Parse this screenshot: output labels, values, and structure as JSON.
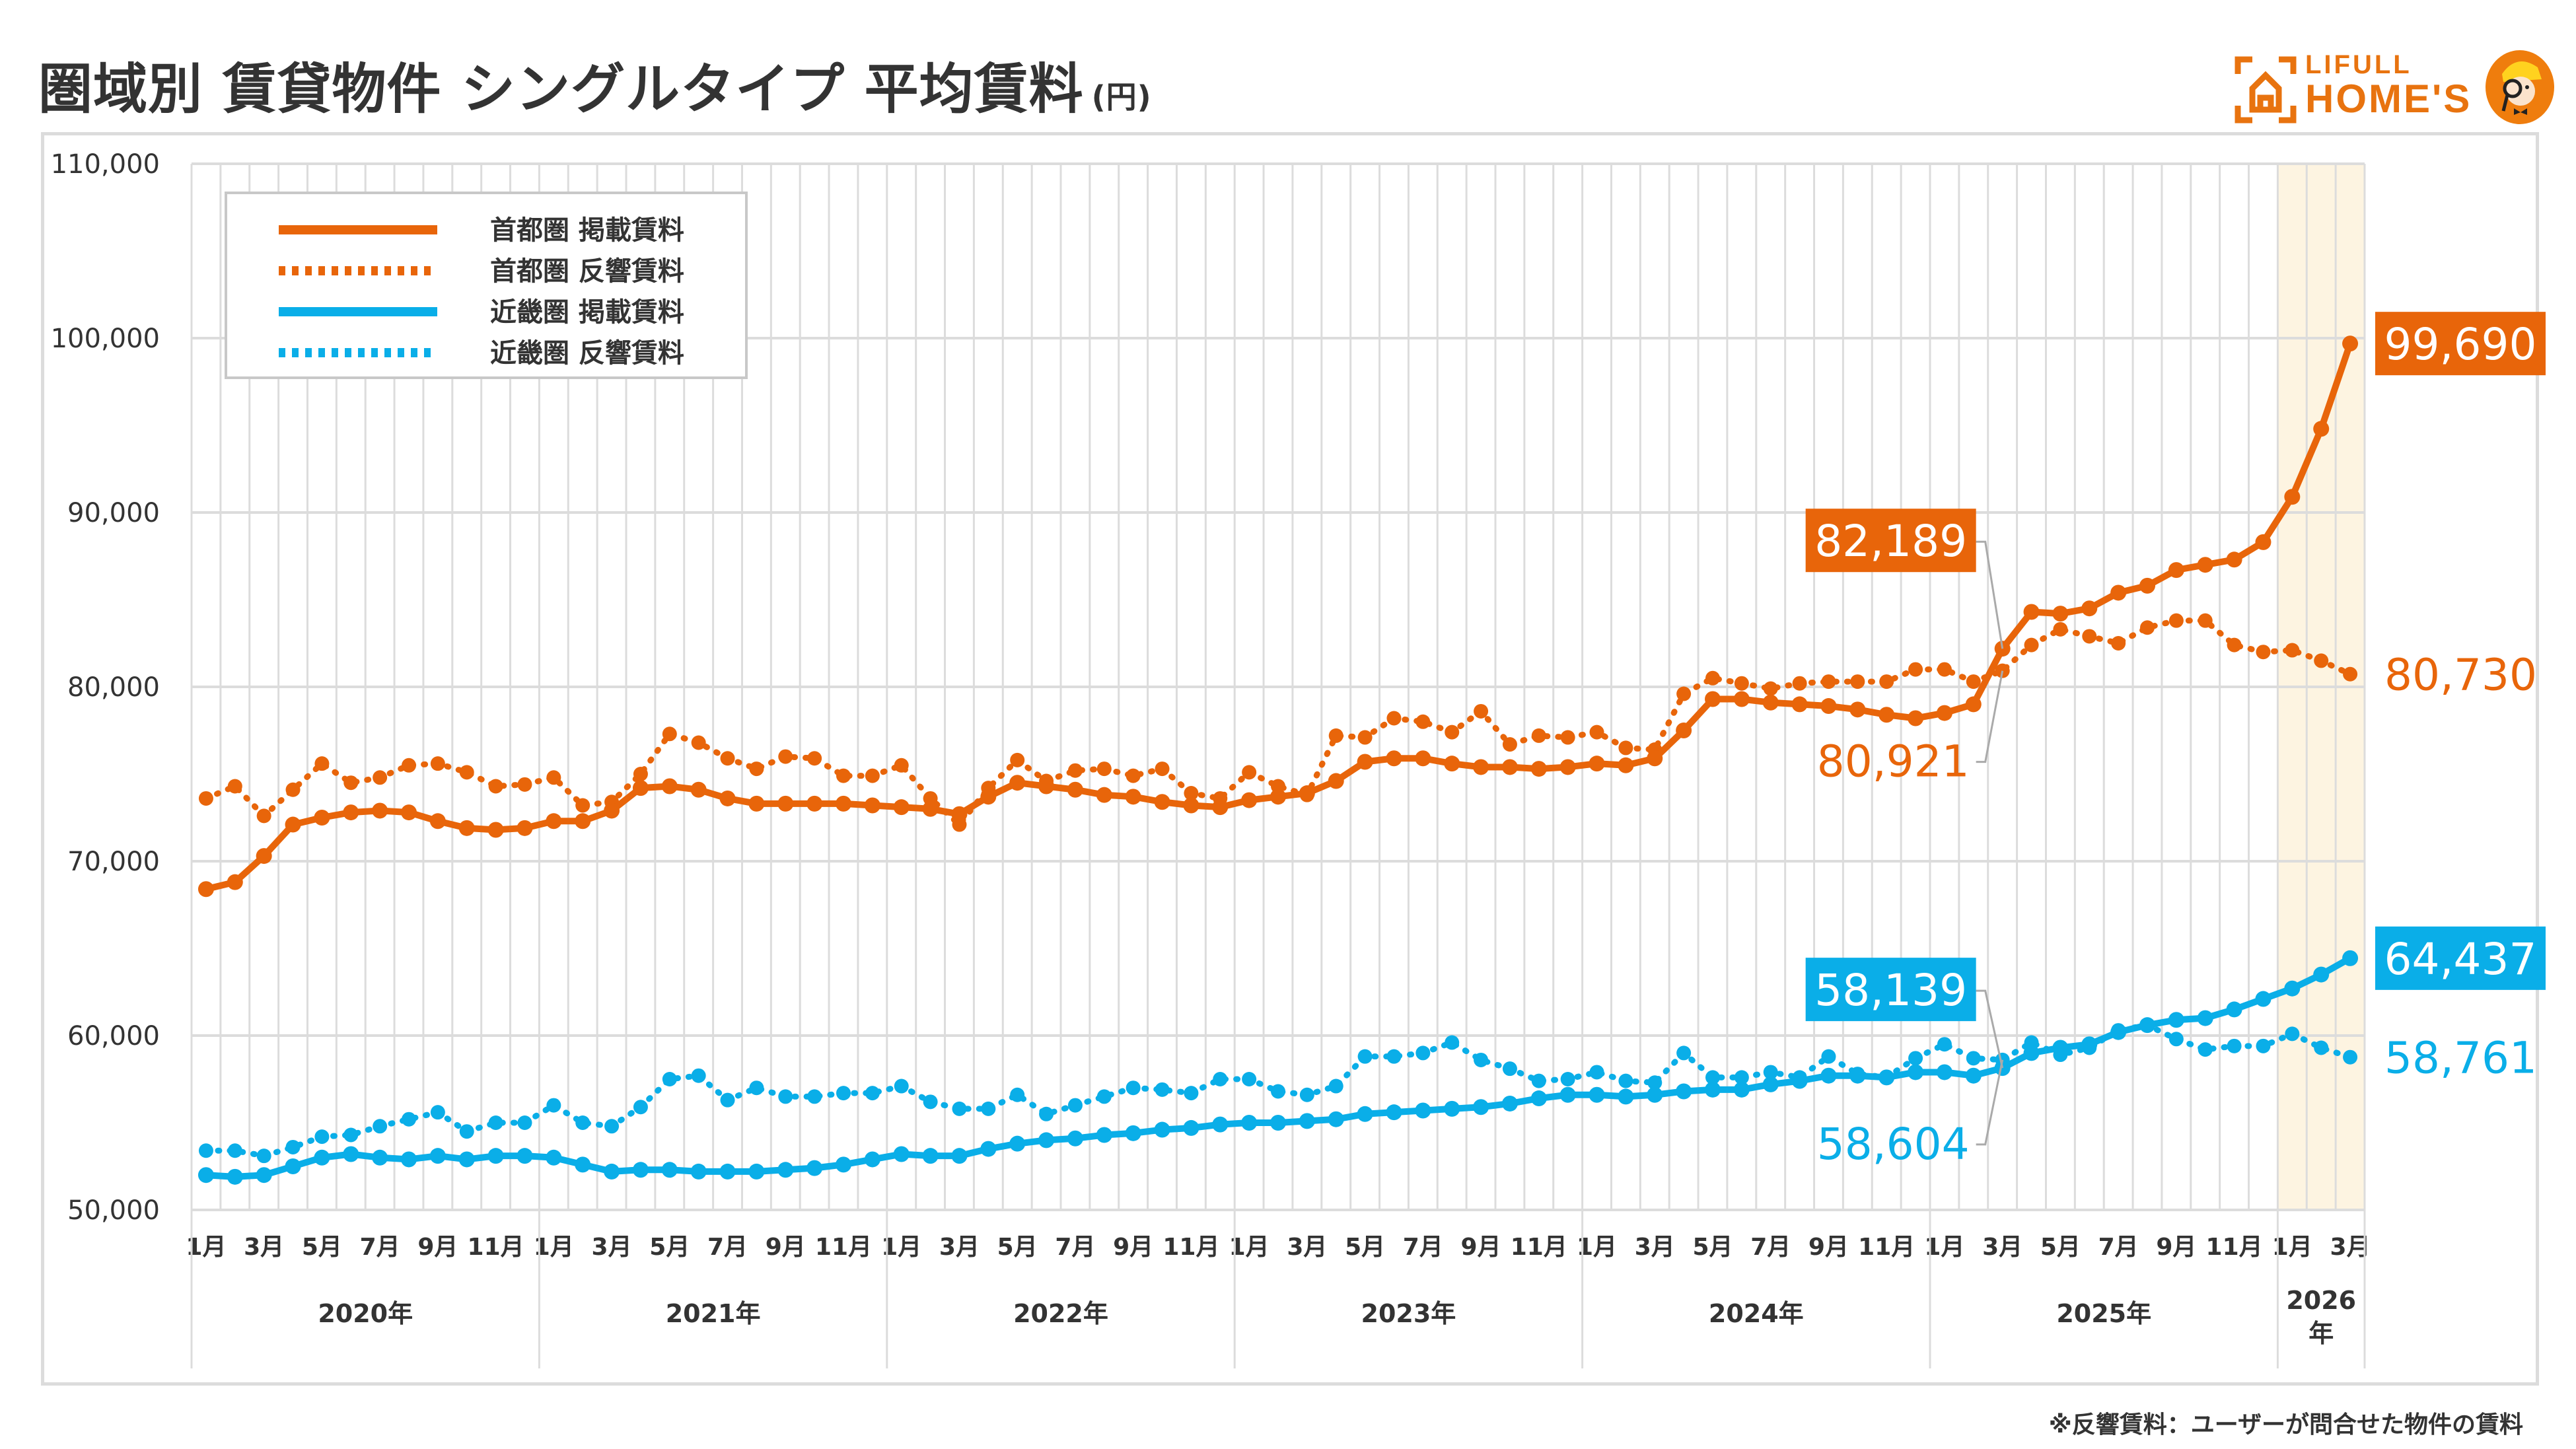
{
  "header": {
    "title": "圏域別 賃貸物件 シングルタイプ 平均賃料",
    "unit": "(円)",
    "logo": {
      "line1": "LIFULL",
      "line2": "HOME'S",
      "icon": "house-bracket-icon",
      "mascot": "detective-mascot-icon"
    }
  },
  "footnote": "※反響賃料：ユーザーが問合せた物件の賃料",
  "colors": {
    "tokyo": "#e8650a",
    "kinki": "#0aaee8",
    "highlight": "#fdf4e1",
    "grid": "#dcdcdc",
    "text": "#333333"
  },
  "chart_data": {
    "type": "line",
    "title": "圏域別 賃貸物件 シングルタイプ 平均賃料 (円)",
    "xlabel": "",
    "ylabel": "",
    "ylim": [
      50000,
      110000
    ],
    "yticks": [
      50000,
      60000,
      70000,
      80000,
      90000,
      100000,
      110000
    ],
    "ytick_labels": [
      "50,000",
      "60,000",
      "70,000",
      "80,000",
      "90,000",
      "100,000",
      "110,000"
    ],
    "grid": true,
    "legend_position": "top-left",
    "x_start": "2020-01",
    "x_end": "2026-03",
    "month_tick_labels": [
      "1月",
      "3月",
      "5月",
      "7月",
      "9月",
      "11月"
    ],
    "year_labels": [
      {
        "label": "2020年",
        "months": 12
      },
      {
        "label": "2021年",
        "months": 12
      },
      {
        "label": "2022年",
        "months": 12
      },
      {
        "label": "2023年",
        "months": 12
      },
      {
        "label": "2024年",
        "months": 12
      },
      {
        "label": "2025年",
        "months": 12
      },
      {
        "label": "2026年",
        "months": 3
      }
    ],
    "highlight_range": [
      "2026-01",
      "2026-03"
    ],
    "series": [
      {
        "name": "首都圏 掲載賃料",
        "region": "tokyo",
        "style": "solid",
        "values": [
          68400,
          68800,
          70300,
          72100,
          72500,
          72800,
          72900,
          72800,
          72300,
          71900,
          71800,
          71900,
          72300,
          72300,
          72900,
          74200,
          74300,
          74100,
          73600,
          73300,
          73300,
          73300,
          73300,
          73200,
          73100,
          73000,
          72700,
          73700,
          74500,
          74300,
          74100,
          73800,
          73700,
          73400,
          73200,
          73100,
          73500,
          73700,
          73900,
          74600,
          75700,
          75900,
          75900,
          75600,
          75400,
          75400,
          75300,
          75400,
          75600,
          75500,
          75900,
          77500,
          79300,
          79300,
          79100,
          79000,
          78900,
          78700,
          78400,
          78200,
          78500,
          79000,
          82189,
          84300,
          84200,
          84500,
          85400,
          85800,
          86700,
          87000,
          87300,
          88300,
          90900,
          94800,
          99690
        ]
      },
      {
        "name": "首都圏 反響賃料",
        "region": "tokyo",
        "style": "dotted",
        "values": [
          73600,
          74300,
          72600,
          74100,
          75600,
          74500,
          74800,
          75500,
          75600,
          75100,
          74300,
          74400,
          74800,
          73200,
          73400,
          75000,
          77300,
          76800,
          75900,
          75300,
          76000,
          75900,
          74900,
          74900,
          75500,
          73600,
          72100,
          74200,
          75800,
          74600,
          75200,
          75300,
          74900,
          75300,
          73900,
          73600,
          75100,
          74300,
          73800,
          77200,
          77100,
          78200,
          78000,
          77400,
          78600,
          76700,
          77200,
          77100,
          77400,
          76500,
          76400,
          79600,
          80500,
          80200,
          79900,
          80200,
          80300,
          80300,
          80300,
          81000,
          81000,
          80300,
          80921,
          82400,
          83300,
          82900,
          82500,
          83400,
          83800,
          83800,
          82400,
          82000,
          82100,
          81500,
          80730
        ]
      },
      {
        "name": "近畿圏 掲載賃料",
        "region": "kinki",
        "style": "solid",
        "values": [
          52000,
          51900,
          52000,
          52500,
          53000,
          53200,
          53000,
          52900,
          53100,
          52900,
          53100,
          53100,
          53000,
          52600,
          52200,
          52300,
          52300,
          52200,
          52200,
          52200,
          52300,
          52400,
          52600,
          52900,
          53200,
          53100,
          53100,
          53500,
          53800,
          54000,
          54100,
          54300,
          54400,
          54600,
          54700,
          54900,
          55000,
          55000,
          55100,
          55200,
          55500,
          55600,
          55700,
          55800,
          55900,
          56100,
          56400,
          56600,
          56600,
          56500,
          56600,
          56800,
          56900,
          56900,
          57200,
          57400,
          57700,
          57700,
          57600,
          57900,
          57900,
          57700,
          58139,
          59000,
          59300,
          59500,
          60200,
          60600,
          60900,
          61000,
          61500,
          62100,
          62700,
          63500,
          64437
        ]
      },
      {
        "name": "近畿圏 反響賃料",
        "region": "kinki",
        "style": "dotted",
        "values": [
          53400,
          53400,
          53100,
          53600,
          54200,
          54300,
          54800,
          55200,
          55600,
          54500,
          55000,
          55000,
          56000,
          55000,
          54800,
          55900,
          57500,
          57700,
          56300,
          57000,
          56500,
          56500,
          56700,
          56700,
          57100,
          56200,
          55800,
          55800,
          56600,
          55500,
          56000,
          56500,
          57000,
          56900,
          56700,
          57500,
          57500,
          56800,
          56600,
          57100,
          58800,
          58800,
          59000,
          59600,
          58600,
          58100,
          57400,
          57500,
          57900,
          57400,
          57300,
          59000,
          57600,
          57600,
          57900,
          57600,
          58800,
          57800,
          57600,
          58700,
          59500,
          58700,
          58604,
          59600,
          58900,
          59300,
          60300,
          60600,
          59800,
          59200,
          59400,
          59400,
          60100,
          59300,
          58761
        ]
      }
    ],
    "annotations": [
      {
        "text": "99,690",
        "series": "首都圏 掲載賃料",
        "month": "2026-03",
        "boxed": true
      },
      {
        "text": "80,730",
        "series": "首都圏 反響賃料",
        "month": "2026-03",
        "boxed": false
      },
      {
        "text": "82,189",
        "series": "首都圏 掲載賃料",
        "month": "2025-03",
        "boxed": true
      },
      {
        "text": "80,921",
        "series": "首都圏 反響賃料",
        "month": "2025-03",
        "boxed": false
      },
      {
        "text": "64,437",
        "series": "近畿圏 掲載賃料",
        "month": "2026-03",
        "boxed": true
      },
      {
        "text": "58,761",
        "series": "近畿圏 反響賃料",
        "month": "2026-03",
        "boxed": false
      },
      {
        "text": "58,604",
        "series": "近畿圏 反響賃料",
        "month": "2025-03",
        "boxed": false
      },
      {
        "text": "58,139",
        "series": "近畿圏 掲載賃料",
        "month": "2025-03",
        "boxed": true
      }
    ]
  }
}
